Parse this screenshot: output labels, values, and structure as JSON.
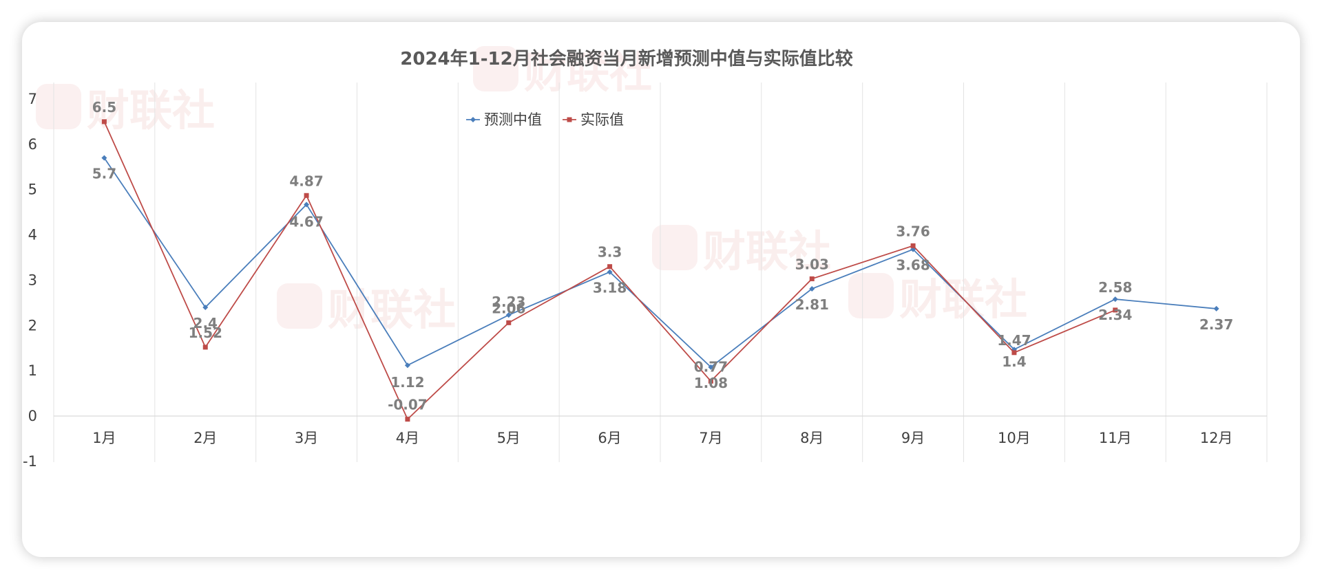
{
  "watermark": {
    "text": "财联社",
    "logo": "C"
  },
  "colors": {
    "forecast": "#4a7ebb",
    "actual": "#be4b48"
  },
  "chart_data": {
    "type": "line",
    "title": "2024年1-12月社会融资当月新增预测中值与实际值比较",
    "xlabel": "",
    "ylabel": "",
    "categories": [
      "1月",
      "2月",
      "3月",
      "4月",
      "5月",
      "6月",
      "7月",
      "8月",
      "9月",
      "10月",
      "11月",
      "12月"
    ],
    "ylim": [
      -1,
      7
    ],
    "yticks": [
      -1,
      0,
      1,
      2,
      3,
      4,
      5,
      6,
      7
    ],
    "grid": {
      "vertical": true,
      "horizontal": false
    },
    "legend": "top-center",
    "series": [
      {
        "name": "预测中值",
        "values": [
          5.7,
          2.4,
          4.67,
          1.12,
          2.23,
          3.18,
          1.08,
          2.81,
          3.68,
          1.47,
          2.58,
          2.37
        ]
      },
      {
        "name": "实际值",
        "values": [
          6.5,
          1.52,
          4.87,
          -0.07,
          2.06,
          3.3,
          0.77,
          3.03,
          3.76,
          1.4,
          2.34,
          null
        ]
      }
    ]
  }
}
